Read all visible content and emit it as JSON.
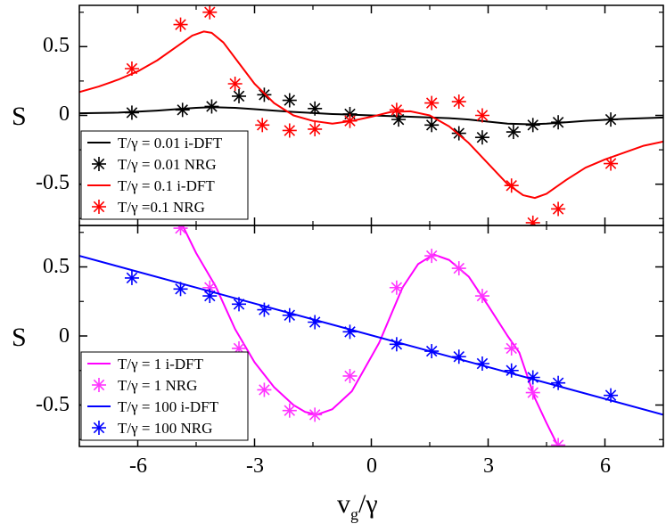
{
  "chart_data": [
    {
      "type": "line",
      "panel": "top",
      "ylabel": "S",
      "xlim": [
        -7.5,
        7.5
      ],
      "ylim": [
        -0.8,
        0.8
      ],
      "yticks": [
        0.5,
        0,
        -0.5
      ],
      "ytick_labels": [
        "0.5",
        "0",
        "-0.5"
      ],
      "legend_position": "bottom-left",
      "series": [
        {
          "name": "T/γ = 0.01 i-DFT",
          "kind": "line",
          "color": "#000000",
          "points": [
            [
              -7.5,
              0.015
            ],
            [
              -6.5,
              0.02
            ],
            [
              -5.5,
              0.035
            ],
            [
              -5,
              0.045
            ],
            [
              -4.5,
              0.055
            ],
            [
              -4.1,
              0.06
            ],
            [
              -3.5,
              0.055
            ],
            [
              -3,
              0.045
            ],
            [
              -2.5,
              0.035
            ],
            [
              -2,
              0.025
            ],
            [
              -1,
              0.01
            ],
            [
              0,
              0.0
            ],
            [
              1,
              -0.01
            ],
            [
              2,
              -0.02
            ],
            [
              2.5,
              -0.03
            ],
            [
              3,
              -0.045
            ],
            [
              3.5,
              -0.06
            ],
            [
              4.1,
              -0.065
            ],
            [
              4.5,
              -0.06
            ],
            [
              5,
              -0.05
            ],
            [
              5.5,
              -0.04
            ],
            [
              6.5,
              -0.025
            ],
            [
              7.5,
              -0.015
            ]
          ]
        },
        {
          "name": "T/γ = 0.01 NRG",
          "kind": "marker",
          "color": "#000000",
          "points": [
            [
              -6.15,
              0.02
            ],
            [
              -4.85,
              0.04
            ],
            [
              -4.1,
              0.065
            ],
            [
              -3.4,
              0.14
            ],
            [
              -2.75,
              0.15
            ],
            [
              -2.1,
              0.11
            ],
            [
              -1.45,
              0.05
            ],
            [
              -0.55,
              0.01
            ],
            [
              0.7,
              -0.03
            ],
            [
              1.55,
              -0.07
            ],
            [
              2.25,
              -0.13
            ],
            [
              2.85,
              -0.16
            ],
            [
              3.65,
              -0.12
            ],
            [
              4.15,
              -0.07
            ],
            [
              4.8,
              -0.05
            ],
            [
              6.15,
              -0.03
            ]
          ]
        },
        {
          "name": "T/γ = 0.1 i-DFT",
          "kind": "line",
          "color": "#ff0000",
          "points": [
            [
              -7.5,
              0.17
            ],
            [
              -7,
              0.21
            ],
            [
              -6.5,
              0.26
            ],
            [
              -6,
              0.32
            ],
            [
              -5.5,
              0.4
            ],
            [
              -5,
              0.5
            ],
            [
              -4.6,
              0.58
            ],
            [
              -4.3,
              0.61
            ],
            [
              -4.1,
              0.6
            ],
            [
              -3.8,
              0.53
            ],
            [
              -3.4,
              0.38
            ],
            [
              -3,
              0.23
            ],
            [
              -2.5,
              0.09
            ],
            [
              -2,
              0.0
            ],
            [
              -1.5,
              -0.04
            ],
            [
              -1,
              -0.06
            ],
            [
              -0.5,
              -0.04
            ],
            [
              0,
              -0.01
            ],
            [
              0.5,
              0.025
            ],
            [
              1,
              0.03
            ],
            [
              1.5,
              0.0
            ],
            [
              2,
              -0.08
            ],
            [
              2.5,
              -0.2
            ],
            [
              3,
              -0.35
            ],
            [
              3.5,
              -0.5
            ],
            [
              3.9,
              -0.58
            ],
            [
              4.2,
              -0.6
            ],
            [
              4.5,
              -0.57
            ],
            [
              5,
              -0.47
            ],
            [
              5.5,
              -0.38
            ],
            [
              6,
              -0.32
            ],
            [
              6.5,
              -0.27
            ],
            [
              7,
              -0.22
            ],
            [
              7.5,
              -0.19
            ]
          ]
        },
        {
          "name": "T/γ =0.1 NRG",
          "kind": "marker",
          "color": "#ff0000",
          "points": [
            [
              -6.15,
              0.34
            ],
            [
              -4.9,
              0.66
            ],
            [
              -4.15,
              0.75
            ],
            [
              -3.5,
              0.23
            ],
            [
              -2.8,
              -0.07
            ],
            [
              -2.1,
              -0.11
            ],
            [
              -1.45,
              -0.1
            ],
            [
              -0.55,
              -0.04
            ],
            [
              0.65,
              0.04
            ],
            [
              1.55,
              0.09
            ],
            [
              2.25,
              0.1
            ],
            [
              2.85,
              0.0
            ],
            [
              3.6,
              -0.51
            ],
            [
              4.15,
              -0.78
            ],
            [
              4.8,
              -0.68
            ],
            [
              6.15,
              -0.35
            ]
          ]
        }
      ]
    },
    {
      "type": "line",
      "panel": "bottom",
      "ylabel": "S",
      "xlabel": "v_g/γ",
      "xlabel_main": "v",
      "xlabel_sub": "g",
      "xlabel_rest": "/γ",
      "xlim": [
        -7.5,
        7.5
      ],
      "ylim": [
        -0.8,
        0.8
      ],
      "xticks": [
        -6,
        -3,
        0,
        3,
        6
      ],
      "xtick_labels": [
        "-6",
        "-3",
        "0",
        "3",
        "6"
      ],
      "yticks": [
        0.5,
        0,
        -0.5
      ],
      "ytick_labels": [
        "0.5",
        "0",
        "-0.5"
      ],
      "legend_position": "bottom-left",
      "series": [
        {
          "name": "T/γ = 1 i-DFT",
          "kind": "line",
          "color": "#ff00ff",
          "points": [
            [
              -4.9,
              0.83
            ],
            [
              -4.5,
              0.6
            ],
            [
              -4,
              0.36
            ],
            [
              -3.5,
              0.05
            ],
            [
              -3,
              -0.19
            ],
            [
              -2.5,
              -0.37
            ],
            [
              -2,
              -0.5
            ],
            [
              -1.7,
              -0.55
            ],
            [
              -1.4,
              -0.57
            ],
            [
              -1,
              -0.53
            ],
            [
              -0.5,
              -0.4
            ],
            [
              -0.2,
              -0.25
            ],
            [
              0.2,
              -0.05
            ],
            [
              0.5,
              0.15
            ],
            [
              0.8,
              0.35
            ],
            [
              1.2,
              0.52
            ],
            [
              1.6,
              0.59
            ],
            [
              2,
              0.55
            ],
            [
              2.5,
              0.43
            ],
            [
              3,
              0.22
            ],
            [
              3.5,
              0.0
            ],
            [
              3.8,
              -0.12
            ],
            [
              4.2,
              -0.45
            ],
            [
              4.5,
              -0.63
            ],
            [
              4.8,
              -0.8
            ]
          ]
        },
        {
          "name": "T/γ = 1 NRG",
          "kind": "marker",
          "color": "#ff33ff",
          "points": [
            [
              -4.9,
              0.78
            ],
            [
              -4.15,
              0.35
            ],
            [
              -3.4,
              -0.09
            ],
            [
              -2.75,
              -0.39
            ],
            [
              -2.1,
              -0.54
            ],
            [
              -1.45,
              -0.57
            ],
            [
              -0.55,
              -0.29
            ],
            [
              0.65,
              0.35
            ],
            [
              1.55,
              0.58
            ],
            [
              2.25,
              0.49
            ],
            [
              2.85,
              0.29
            ],
            [
              3.6,
              -0.09
            ],
            [
              4.15,
              -0.41
            ],
            [
              4.8,
              -0.79
            ]
          ]
        },
        {
          "name": "T/γ = 100 i-DFT",
          "kind": "line",
          "color": "#0000ff",
          "points": [
            [
              -7.5,
              0.58
            ],
            [
              7.5,
              -0.57
            ]
          ]
        },
        {
          "name": "T/γ = 100 NRG",
          "kind": "marker",
          "color": "#0000ff",
          "points": [
            [
              -6.15,
              0.42
            ],
            [
              -4.9,
              0.34
            ],
            [
              -4.15,
              0.29
            ],
            [
              -3.4,
              0.23
            ],
            [
              -2.75,
              0.19
            ],
            [
              -2.1,
              0.15
            ],
            [
              -1.45,
              0.1
            ],
            [
              -0.55,
              0.03
            ],
            [
              0.65,
              -0.06
            ],
            [
              1.55,
              -0.11
            ],
            [
              2.25,
              -0.15
            ],
            [
              2.85,
              -0.2
            ],
            [
              3.6,
              -0.25
            ],
            [
              4.15,
              -0.3
            ],
            [
              4.8,
              -0.34
            ],
            [
              6.15,
              -0.43
            ]
          ]
        }
      ]
    }
  ]
}
